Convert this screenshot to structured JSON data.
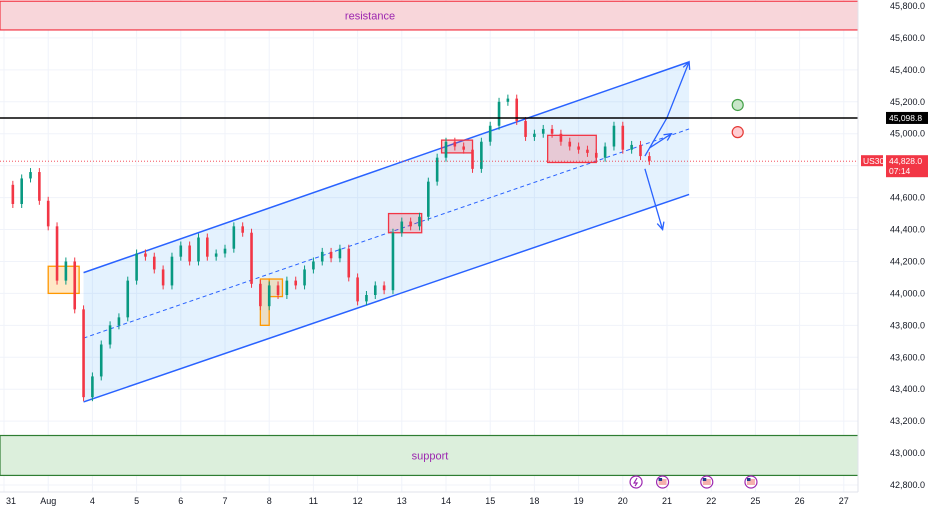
{
  "chart_data": {
    "type": "candlestick",
    "symbol": "US30",
    "ylim": [
      42750,
      45880
    ],
    "y_ticks": [
      42800,
      43000,
      43200,
      43400,
      43600,
      43800,
      44000,
      44200,
      44400,
      44600,
      44800,
      45000,
      45200,
      45400,
      45600,
      45800
    ],
    "y_tick_labels": [
      "42,800.0",
      "43,000.0",
      "43,200.0",
      "43,400.0",
      "43,600.0",
      "43,800.0",
      "44,000.0",
      "44,200.0",
      "44,400.0",
      "44,600.0",
      "44,800.0",
      "45,000.0",
      "45,200.0",
      "45,400.0",
      "45,600.0",
      "45,800.0"
    ],
    "x_labels": [
      "31",
      "Aug",
      "4",
      "5",
      "6",
      "7",
      "8",
      "11",
      "12",
      "13",
      "14",
      "15",
      "18",
      "19",
      "20",
      "21",
      "22",
      "25",
      "26",
      "27"
    ],
    "x_range": [
      0,
      19.5
    ],
    "grid": true,
    "price_path": [
      [
        0.0,
        44680
      ],
      [
        0.2,
        44560
      ],
      [
        0.4,
        44720
      ],
      [
        0.6,
        44760
      ],
      [
        0.8,
        44580
      ],
      [
        1.0,
        44420
      ],
      [
        1.2,
        44080
      ],
      [
        1.4,
        44200
      ],
      [
        1.6,
        43900
      ],
      [
        1.8,
        43350
      ],
      [
        2.0,
        43480
      ],
      [
        2.2,
        43680
      ],
      [
        2.4,
        43800
      ],
      [
        2.6,
        43850
      ],
      [
        2.8,
        44080
      ],
      [
        3.0,
        44250
      ],
      [
        3.2,
        44230
      ],
      [
        3.4,
        44150
      ],
      [
        3.6,
        44050
      ],
      [
        3.8,
        44230
      ],
      [
        4.0,
        44300
      ],
      [
        4.2,
        44200
      ],
      [
        4.4,
        44350
      ],
      [
        4.6,
        44230
      ],
      [
        4.8,
        44250
      ],
      [
        5.0,
        44280
      ],
      [
        5.2,
        44420
      ],
      [
        5.4,
        44380
      ],
      [
        5.6,
        44060
      ],
      [
        5.8,
        43920
      ],
      [
        6.0,
        44050
      ],
      [
        6.2,
        43990
      ],
      [
        6.4,
        44080
      ],
      [
        6.6,
        44050
      ],
      [
        6.8,
        44150
      ],
      [
        7.0,
        44200
      ],
      [
        7.2,
        44260
      ],
      [
        7.4,
        44220
      ],
      [
        7.6,
        44280
      ],
      [
        7.8,
        44100
      ],
      [
        8.0,
        43950
      ],
      [
        8.2,
        43990
      ],
      [
        8.4,
        44050
      ],
      [
        8.6,
        44020
      ],
      [
        8.8,
        44380
      ],
      [
        9.0,
        44450
      ],
      [
        9.2,
        44420
      ],
      [
        9.4,
        44480
      ],
      [
        9.6,
        44700
      ],
      [
        9.8,
        44850
      ],
      [
        10.0,
        44950
      ],
      [
        10.2,
        44920
      ],
      [
        10.4,
        44900
      ],
      [
        10.6,
        44780
      ],
      [
        10.8,
        44950
      ],
      [
        11.0,
        45050
      ],
      [
        11.2,
        45200
      ],
      [
        11.4,
        45220
      ],
      [
        11.6,
        45080
      ],
      [
        11.8,
        44980
      ],
      [
        12.0,
        45000
      ],
      [
        12.2,
        45030
      ],
      [
        12.4,
        45000
      ],
      [
        12.6,
        44950
      ],
      [
        12.8,
        44920
      ],
      [
        13.0,
        44900
      ],
      [
        13.2,
        44880
      ],
      [
        13.4,
        44850
      ],
      [
        13.6,
        44920
      ],
      [
        13.8,
        45050
      ],
      [
        14.0,
        44900
      ],
      [
        14.2,
        44930
      ],
      [
        14.4,
        44860
      ],
      [
        14.6,
        44830
      ]
    ],
    "channel_upper": [
      [
        1.8,
        44130
      ],
      [
        15.5,
        45450
      ]
    ],
    "channel_lower": [
      [
        1.8,
        43320
      ],
      [
        15.5,
        44620
      ]
    ],
    "channel_mid": [
      [
        1.8,
        43720
      ],
      [
        15.5,
        45030
      ]
    ],
    "projections": {
      "up": [
        [
          14.5,
          44860
        ],
        [
          15.0,
          45100
        ],
        [
          15.5,
          45450
        ]
      ],
      "down": [
        [
          14.5,
          44780
        ],
        [
          14.9,
          44400
        ]
      ],
      "mid_up": [
        [
          14.6,
          44910
        ],
        [
          15.1,
          45000
        ]
      ]
    },
    "boxes": [
      {
        "type": "orange",
        "x": [
          1.0,
          1.7
        ],
        "y": [
          44000,
          44170
        ]
      },
      {
        "type": "orange",
        "x": [
          5.8,
          6.0
        ],
        "y": [
          43800,
          44090
        ]
      },
      {
        "type": "orange",
        "x": [
          6.0,
          6.3
        ],
        "y": [
          43980,
          44090
        ]
      },
      {
        "type": "red",
        "x": [
          8.7,
          9.45
        ],
        "y": [
          44380,
          44500
        ]
      },
      {
        "type": "red",
        "x": [
          9.9,
          10.6
        ],
        "y": [
          44880,
          44960
        ]
      },
      {
        "type": "red",
        "x": [
          12.3,
          13.4
        ],
        "y": [
          44820,
          44990
        ]
      }
    ],
    "resistance": {
      "label": "resistance",
      "y": [
        45650,
        45830
      ]
    },
    "support": {
      "label": "support",
      "y": [
        42860,
        43110
      ]
    },
    "levels": {
      "level_line": 45098.8,
      "level_label": "45,098.8"
    },
    "current": {
      "symbol": "US30",
      "price": 44828,
      "price_label": "44,828.0",
      "countdown": "07:14"
    },
    "circles": [
      {
        "color": "green",
        "x": 16.6,
        "y": 45180
      },
      {
        "color": "red",
        "x": 16.6,
        "y": 45010
      }
    ],
    "events": [
      {
        "type": "lightning",
        "x": 14.3
      },
      {
        "type": "us-flag",
        "x": 14.9
      },
      {
        "type": "us-flag",
        "x": 15.9
      },
      {
        "type": "us-flag",
        "x": 16.9
      }
    ]
  }
}
